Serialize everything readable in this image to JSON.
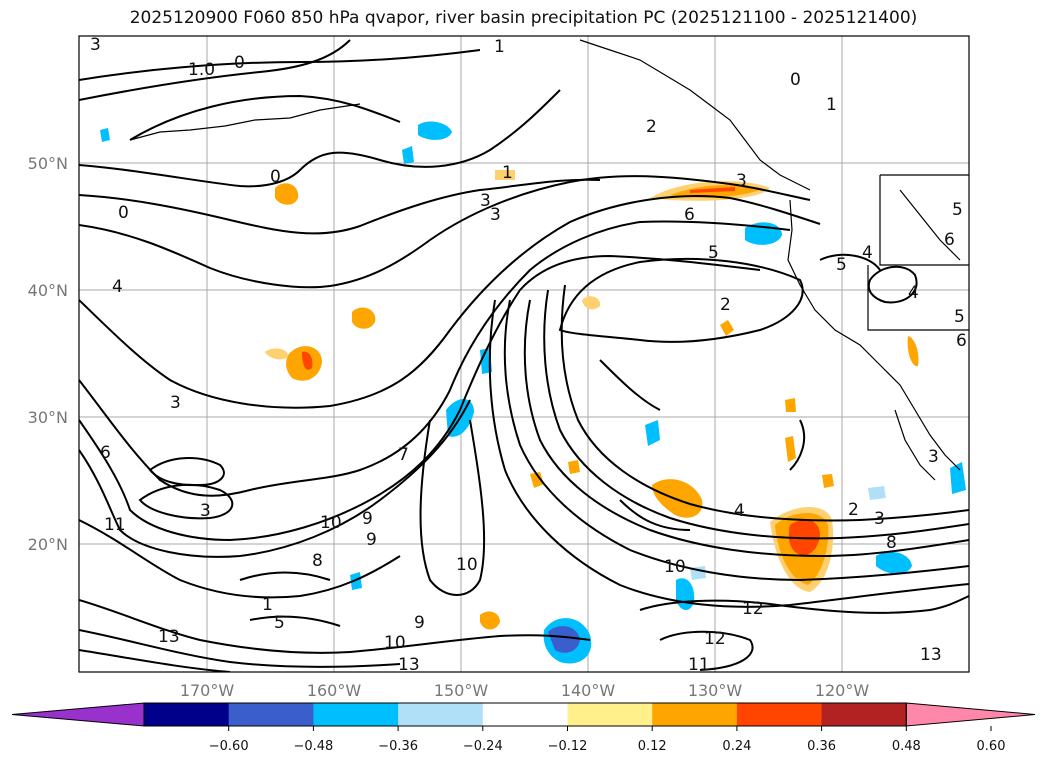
{
  "title": "2025120900 F060 850 hPa qvapor, river basin precipitation PC (2025121100 - 2025121400)",
  "lat_labels": [
    "50°N",
    "40°N",
    "30°N",
    "20°N"
  ],
  "lon_labels": [
    "170°W",
    "160°W",
    "150°W",
    "140°W",
    "130°W",
    "120°W"
  ],
  "colorbar": {
    "ticks": [
      "−0.60",
      "−0.48",
      "−0.36",
      "−0.24",
      "−0.12",
      "0.12",
      "0.24",
      "0.36",
      "0.48",
      "0.60"
    ],
    "colors": [
      "#9932cc",
      "#00008b",
      "#3a5fcd",
      "#00bfff",
      "#b0e0f8",
      "#ffffff",
      "#fff08c",
      "#ffa500",
      "#ff4500",
      "#b22222",
      "#ff88aa"
    ]
  },
  "contour_labels": [
    "3",
    "1",
    "0",
    "1.0",
    "0",
    "1",
    "2",
    "0",
    "1",
    "3",
    "3",
    "3",
    "6",
    "0",
    "5",
    "4",
    "2",
    "4",
    "5",
    "5",
    "6",
    "6",
    "5",
    "4",
    "3",
    "6",
    "7",
    "3",
    "10",
    "9",
    "11",
    "10",
    "8",
    "9",
    "8",
    "10",
    "2",
    "4",
    "3",
    "12",
    "10",
    "13",
    "11",
    "13",
    "5",
    "9",
    "12",
    "13",
    "1",
    "3"
  ],
  "contour_label_values": [
    3,
    1,
    0,
    1.0,
    0,
    1,
    2,
    0,
    1,
    3,
    3,
    3,
    6,
    0,
    5,
    4,
    2,
    4,
    5,
    5,
    6,
    6,
    5,
    4,
    3,
    6,
    7,
    3,
    10,
    9,
    11,
    10,
    8,
    9,
    8,
    10,
    2,
    4,
    3,
    12,
    10,
    13,
    11,
    13,
    5,
    9,
    12,
    13,
    1,
    3
  ]
}
